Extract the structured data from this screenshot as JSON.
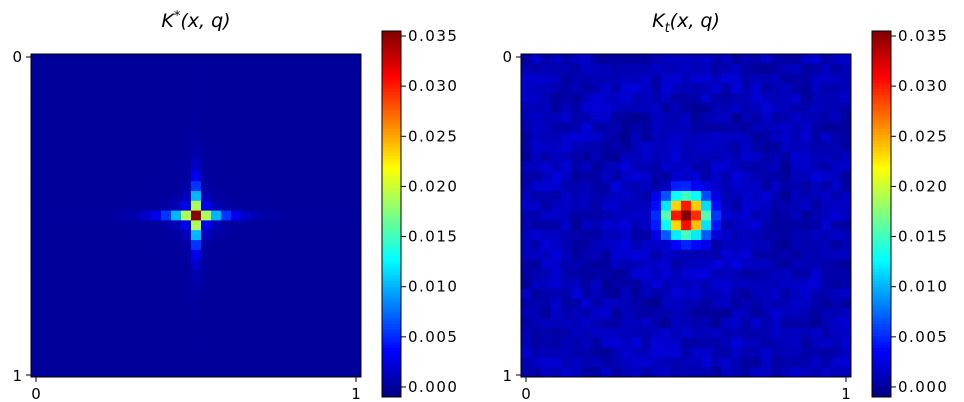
{
  "chart_data": [
    {
      "type": "heatmap",
      "title": "K^*(x,q)",
      "title_main": "K",
      "title_sup": "*",
      "title_args": "(x, q)",
      "xlabel": "",
      "ylabel": "",
      "x_ticks": [
        "0",
        "1"
      ],
      "y_ticks": [
        "0",
        "1"
      ],
      "xlim": [
        0,
        1
      ],
      "ylim": [
        0,
        1
      ],
      "grid_size": 33,
      "shape": "four-pointed star centered in the middle",
      "peak": {
        "x": 0.5,
        "y": 0.5,
        "value": 0.035
      },
      "background_value": 0.0,
      "colormap": "jet",
      "colorbar": {
        "min": -0.001,
        "max": 0.0355,
        "ticks": [
          "0.000",
          "0.005",
          "0.010",
          "0.015",
          "0.020",
          "0.025",
          "0.030",
          "0.035"
        ]
      },
      "grid": false
    },
    {
      "type": "heatmap",
      "title": "K_t(x,q)",
      "title_main": "K",
      "title_sub": "t",
      "title_args": "(x, q)",
      "xlabel": "",
      "ylabel": "",
      "x_ticks": [
        "0",
        "1"
      ],
      "y_ticks": [
        "0",
        "1"
      ],
      "xlim": [
        0,
        1
      ],
      "ylim": [
        0,
        1
      ],
      "grid_size": 33,
      "shape": "round blob centered in the middle with faint ring artifacts",
      "peak": {
        "x": 0.5,
        "y": 0.5,
        "value": 0.035
      },
      "background_value": 0.001,
      "colormap": "jet",
      "colorbar": {
        "min": -0.001,
        "max": 0.0355,
        "ticks": [
          "0.000",
          "0.005",
          "0.010",
          "0.015",
          "0.020",
          "0.025",
          "0.030",
          "0.035"
        ]
      },
      "grid": false
    }
  ]
}
